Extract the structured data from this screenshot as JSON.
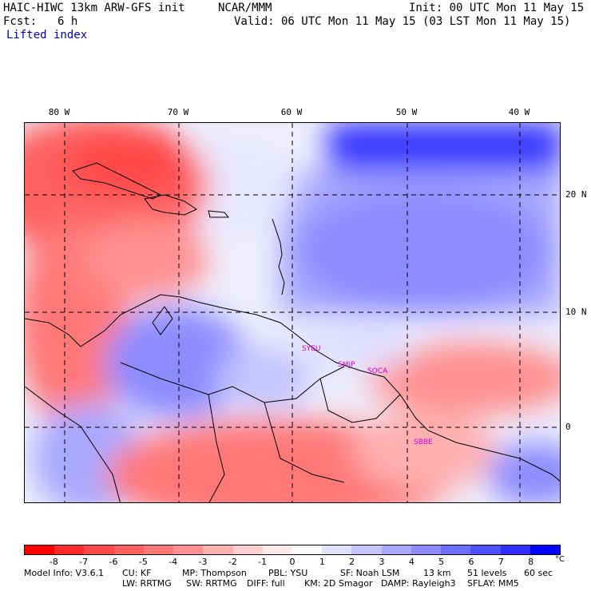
{
  "header": {
    "model": "HAIC-HIWC 13km ARW-GFS init",
    "org": "NCAR/MMM",
    "init": "Init: 00 UTC Mon 11 May 15",
    "fcst_label": "Fcst:",
    "fcst_value": "6 h",
    "valid": "Valid: 06 UTC Mon 11 May 15 (03 LST Mon 11 May 15)",
    "field": "Lifted index"
  },
  "map": {
    "lon_labels": [
      "80 W",
      "70 W",
      "60 W",
      "50 W",
      "40 W"
    ],
    "lat_labels": [
      "20 N",
      "10 N",
      "0"
    ],
    "stations": [
      "SYEU",
      "SMJP",
      "SOCA",
      "SBBE"
    ]
  },
  "colorbar": {
    "ticks": [
      "-8",
      "-7",
      "-6",
      "-5",
      "-4",
      "-3",
      "-2",
      "-1",
      "0",
      "1",
      "2",
      "3",
      "4",
      "5",
      "6",
      "7",
      "8"
    ],
    "unit": "°C",
    "colors": [
      "#ff0000",
      "#ff2a2a",
      "#ff4848",
      "#ff6060",
      "#ff7878",
      "#ff9090",
      "#ffb0b0",
      "#ffd0d0",
      "#ffeaea",
      "#ffffff",
      "#e0e0ff",
      "#c4c4ff",
      "#a8a8ff",
      "#8c8cff",
      "#6e6eff",
      "#5050ff",
      "#2e2eff",
      "#0000ff"
    ]
  },
  "footer": {
    "line1": [
      "Model Info: V3.6.1",
      "CU: KF",
      "MP: Thompson",
      "PBL: YSU",
      "SF: Noah LSM",
      "13 km",
      "51 levels",
      "60 sec"
    ],
    "line2": [
      "LW: RRTMG",
      "SW: RRTMG",
      "DIFF: full",
      "KM: 2D Smagor",
      "DAMP: Rayleigh3",
      "SFLAY: MM5"
    ]
  }
}
